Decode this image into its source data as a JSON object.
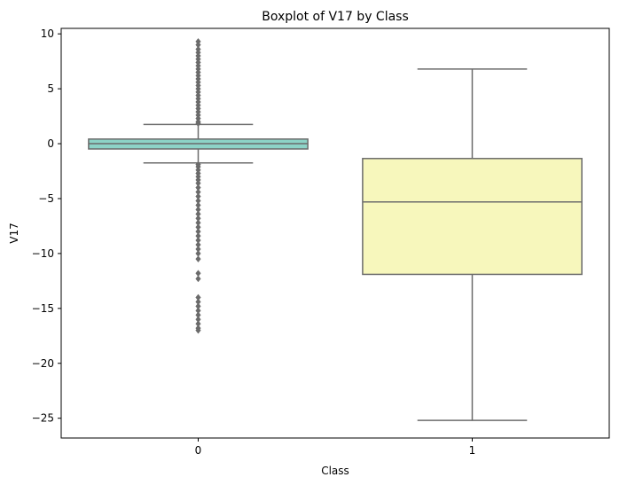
{
  "chart_data": {
    "type": "boxplot",
    "title": "Boxplot of V17 by Class",
    "xlabel": "Class",
    "ylabel": "V17",
    "categories": [
      "0",
      "1"
    ],
    "ylim": [
      -26.8,
      10.5
    ],
    "yticks": [
      10,
      5,
      0,
      -5,
      -10,
      -15,
      -20,
      -25
    ],
    "ytick_labels": [
      "10",
      "5",
      "0",
      "−5",
      "−10",
      "−15",
      "−20",
      "−25"
    ],
    "grid": false,
    "boxes": [
      {
        "category": "0",
        "color": "#8dd3c7",
        "whisker_low": -1.75,
        "q1": -0.48,
        "median": 0.0,
        "q3": 0.42,
        "whisker_high": 1.75,
        "outliers": [
          9.3,
          9.0,
          8.6,
          8.3,
          8.0,
          7.7,
          7.4,
          7.1,
          6.8,
          6.5,
          6.2,
          5.9,
          5.6,
          5.3,
          5.0,
          4.7,
          4.4,
          4.1,
          3.8,
          3.5,
          3.2,
          2.9,
          2.6,
          2.3,
          2.0,
          1.85,
          -1.9,
          -2.1,
          -2.4,
          -2.7,
          -3.0,
          -3.3,
          -3.6,
          -4.0,
          -4.4,
          -4.8,
          -5.2,
          -5.6,
          -6.0,
          -6.4,
          -6.8,
          -7.2,
          -7.6,
          -8.0,
          -8.4,
          -8.8,
          -9.2,
          -9.6,
          -10.0,
          -10.5,
          -11.8,
          -12.3,
          -14.0,
          -14.4,
          -14.8,
          -15.2,
          -15.6,
          -16.0,
          -16.4,
          -16.8,
          -17.0
        ]
      },
      {
        "category": "1",
        "color": "#f7f7bc",
        "whisker_low": -25.2,
        "q1": -11.9,
        "median": -5.3,
        "q3": -1.35,
        "whisker_high": 6.8,
        "outliers": []
      }
    ],
    "line_color": "#6b6b6b",
    "outlier_color": "#6b6b6b"
  }
}
